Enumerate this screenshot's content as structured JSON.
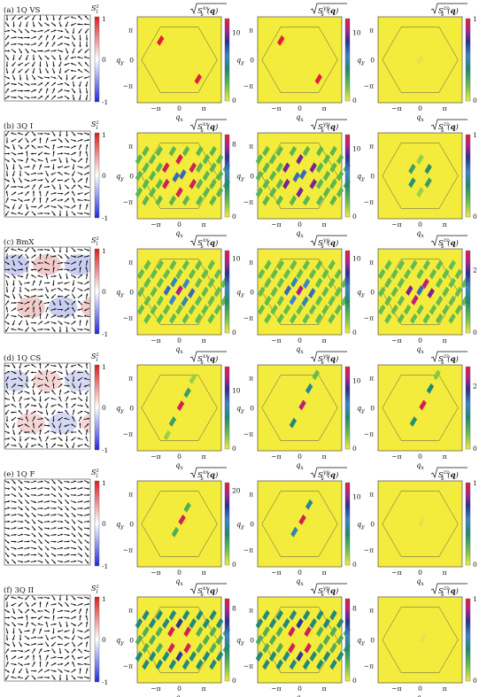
{
  "figure": {
    "rows": [
      {
        "label": "(a) 1Q VS",
        "real_space": {
          "colorbar_label": "S_i^z",
          "tick_labels": [
            "1",
            "0",
            "-1"
          ],
          "texture": {
            "kind": "vortex",
            "mz": 0
          }
        },
        "panels": [
          {
            "title_main": "S",
            "title_sup": "xx",
            "title_sub": "s",
            "ticks": [
              "10",
              "0"
            ],
            "vmax": 12,
            "peaks": [
              [
                -0.28,
                0.28,
                12
              ],
              [
                0.28,
                -0.28,
                12
              ]
            ]
          },
          {
            "title_main": "S",
            "title_sup": "yy",
            "title_sub": "s",
            "ticks": [
              "10",
              "0"
            ],
            "vmax": 12,
            "peaks": [
              [
                -0.28,
                0.28,
                12
              ],
              [
                0.28,
                -0.28,
                12
              ]
            ]
          },
          {
            "title_main": "S",
            "title_sup": "zz",
            "title_sub": "s",
            "ticks": [
              "1",
              "0"
            ],
            "vmax": 1,
            "peaks": [
              [
                0,
                0,
                0.05
              ]
            ]
          }
        ]
      },
      {
        "label": "(b) 3Q I",
        "real_space": {
          "colorbar_label": "S_i^z",
          "tick_labels": [
            "1",
            "0",
            "-1"
          ],
          "texture": {
            "kind": "triple",
            "mz": 0
          }
        },
        "panels": [
          {
            "title_main": "S",
            "title_sup": "xx",
            "title_sub": "s",
            "ticks": [
              "8",
              "0"
            ],
            "vmax": 9,
            "pattern": "3Q-I-xx"
          },
          {
            "title_main": "S",
            "title_sup": "yy",
            "title_sub": "s",
            "ticks": [
              "10",
              "0"
            ],
            "vmax": 12,
            "pattern": "3Q-I-yy"
          },
          {
            "title_main": "S",
            "title_sup": "zz",
            "title_sub": "s",
            "ticks": [
              "1",
              "0"
            ],
            "vmax": 1,
            "pattern": "3Q-I-zz"
          }
        ]
      },
      {
        "label": "(c) BmX",
        "real_space": {
          "colorbar_label": "S_i^z",
          "tick_labels": [
            "1",
            "0",
            "-1"
          ],
          "texture": {
            "kind": "bimeron",
            "mz": 0.45
          }
        },
        "panels": [
          {
            "title_main": "S",
            "title_sup": "xx",
            "title_sub": "s",
            "ticks": [
              "10",
              "0"
            ],
            "vmax": 11,
            "pattern": "BmX-xx"
          },
          {
            "title_main": "S",
            "title_sup": "yy",
            "title_sub": "s",
            "ticks": [
              "10",
              "0"
            ],
            "vmax": 11,
            "pattern": "BmX-yy"
          },
          {
            "title_main": "S",
            "title_sup": "zz",
            "title_sub": "s",
            "ticks": [
              "2",
              "0"
            ],
            "vmax": 2.6,
            "pattern": "BmX-zz"
          }
        ]
      },
      {
        "label": "(d) 1Q CS",
        "real_space": {
          "colorbar_label": "S_i^z",
          "tick_labels": [
            "1",
            "0",
            "-1"
          ],
          "texture": {
            "kind": "stripe",
            "mz": 0.35
          }
        },
        "panels": [
          {
            "title_main": "S",
            "title_sup": "xx",
            "title_sub": "s",
            "ticks": [
              "10",
              "0"
            ],
            "vmax": 14,
            "pattern": "CS-xx"
          },
          {
            "title_main": "S",
            "title_sup": "yy",
            "title_sub": "s",
            "ticks": [
              "10",
              "0"
            ],
            "vmax": 12,
            "pattern": "CS-yy"
          },
          {
            "title_main": "S",
            "title_sup": "zz",
            "title_sub": "s",
            "ticks": [
              "2",
              "0"
            ],
            "vmax": 2.6,
            "pattern": "CS-zz"
          }
        ]
      },
      {
        "label": "(e) 1Q F",
        "real_space": {
          "colorbar_label": "S_i^z",
          "tick_labels": [
            "1",
            "0",
            "-1"
          ],
          "texture": {
            "kind": "fan",
            "mz": 0
          }
        },
        "panels": [
          {
            "title_main": "S",
            "title_sup": "xx",
            "title_sub": "s",
            "ticks": [
              "20",
              "0"
            ],
            "vmax": 22,
            "pattern": "F-xx"
          },
          {
            "title_main": "S",
            "title_sup": "yy",
            "title_sub": "s",
            "ticks": [
              "10",
              "0"
            ],
            "vmax": 12,
            "pattern": "F-yy"
          },
          {
            "title_main": "S",
            "title_sup": "zz",
            "title_sub": "s",
            "ticks": [
              "1",
              "0"
            ],
            "vmax": 1,
            "pattern": "F-zz"
          }
        ]
      },
      {
        "label": "(f) 3Q II",
        "real_space": {
          "colorbar_label": "S_i^z",
          "tick_labels": [
            "1",
            "0",
            "-1"
          ],
          "texture": {
            "kind": "triple2",
            "mz": 0
          }
        },
        "panels": [
          {
            "title_main": "S",
            "title_sup": "xx",
            "title_sub": "s",
            "ticks": [
              "8",
              "0"
            ],
            "vmax": 9,
            "pattern": "3Q-II"
          },
          {
            "title_main": "S",
            "title_sup": "yy",
            "title_sub": "s",
            "ticks": [
              "8",
              "0"
            ],
            "vmax": 9,
            "pattern": "3Q-II"
          },
          {
            "title_main": "S",
            "title_sup": "zz",
            "title_sub": "s",
            "ticks": [
              "1",
              "0"
            ],
            "vmax": 1,
            "pattern": "3Q-II-zz"
          }
        ]
      }
    ],
    "axes": {
      "x_label": "q_x",
      "y_label": "q_y",
      "x_ticks": [
        "−π",
        "0",
        "π"
      ],
      "y_ticks": [
        "π",
        "0",
        "−π"
      ],
      "background_color": "#f4ec3c"
    }
  }
}
